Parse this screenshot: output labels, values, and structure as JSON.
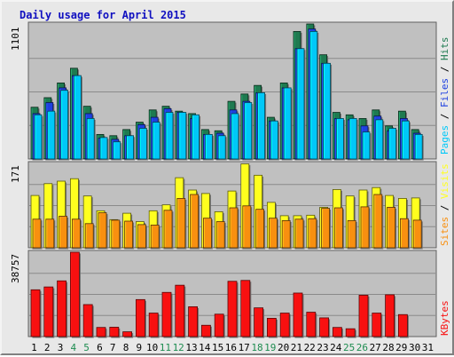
{
  "title": "Daily usage for April 2015",
  "colors": {
    "pages": "#00c8f8",
    "files": "#1e40e0",
    "hits": "#1e7a50",
    "visits": "#ffff1e",
    "sites": "#f89010",
    "kbytes": "#f81010",
    "weekend_label": "#1e8c50",
    "weekday_label": "#000000",
    "panel_bg": "#c0c0c0",
    "frame_bg": "#e8e8e8"
  },
  "chart_data": [
    {
      "type": "bar",
      "name": "hits-files-pages",
      "max_label": "1101",
      "ylim": [
        0,
        1101
      ],
      "legend": [
        "Pages",
        "Files",
        "Hits"
      ],
      "legend_separator": "/",
      "categories": [
        "1",
        "2",
        "3",
        "4",
        "5",
        "6",
        "7",
        "8",
        "9",
        "10",
        "11",
        "12",
        "13",
        "14",
        "15",
        "16",
        "17",
        "18",
        "19",
        "20",
        "21",
        "22",
        "23",
        "24",
        "25",
        "26",
        "27",
        "28",
        "29",
        "30",
        "31"
      ],
      "weekend_days": [
        "4",
        "5",
        "11",
        "12",
        "18",
        "19",
        "25",
        "26"
      ],
      "series": [
        {
          "name": "Hits",
          "values": [
            422,
            500,
            620,
            740,
            430,
            200,
            190,
            240,
            300,
            400,
            430,
            390,
            370,
            240,
            230,
            470,
            530,
            600,
            340,
            620,
            1040,
            1101,
            850,
            380,
            360,
            330,
            400,
            270,
            390,
            240,
            0
          ]
        },
        {
          "name": "Files",
          "values": [
            370,
            460,
            580,
            680,
            370,
            170,
            160,
            190,
            280,
            340,
            410,
            380,
            330,
            200,
            210,
            400,
            470,
            540,
            310,
            580,
            900,
            1060,
            780,
            330,
            320,
            270,
            350,
            230,
            330,
            210,
            0
          ]
        },
        {
          "name": "Pages",
          "values": [
            360,
            390,
            560,
            680,
            330,
            175,
            140,
            190,
            250,
            300,
            380,
            380,
            360,
            200,
            190,
            370,
            460,
            540,
            310,
            580,
            900,
            1040,
            780,
            330,
            330,
            220,
            320,
            250,
            310,
            200,
            0
          ]
        }
      ]
    },
    {
      "type": "bar",
      "name": "visits-sites",
      "max_label": "171",
      "ylim": [
        0,
        171
      ],
      "legend": [
        "Sites",
        "Visits"
      ],
      "legend_separator": "/",
      "categories": [
        "1",
        "2",
        "3",
        "4",
        "5",
        "6",
        "7",
        "8",
        "9",
        "10",
        "11",
        "12",
        "13",
        "14",
        "15",
        "16",
        "17",
        "18",
        "19",
        "20",
        "21",
        "22",
        "23",
        "24",
        "25",
        "26",
        "27",
        "28",
        "29",
        "30",
        "31"
      ],
      "weekend_days": [
        "4",
        "5",
        "11",
        "12",
        "18",
        "19",
        "25",
        "26"
      ],
      "series": [
        {
          "name": "Visits",
          "values": [
            106,
            130,
            135,
            140,
            105,
            75,
            57,
            70,
            53,
            75,
            87,
            142,
            117,
            110,
            73,
            115,
            170,
            147,
            92,
            65,
            65,
            66,
            82,
            118,
            105,
            117,
            122,
            106,
            100,
            101,
            0
          ]
        },
        {
          "name": "Sites",
          "values": [
            58,
            58,
            64,
            58,
            49,
            71,
            56,
            54,
            47,
            46,
            76,
            100,
            108,
            60,
            53,
            81,
            85,
            78,
            60,
            55,
            58,
            59,
            80,
            81,
            55,
            83,
            108,
            82,
            59,
            56,
            0
          ]
        }
      ]
    },
    {
      "type": "bar",
      "name": "kbytes",
      "max_label": "38757",
      "ylim": [
        0,
        38757
      ],
      "legend": [
        "KBytes"
      ],
      "categories": [
        "1",
        "2",
        "3",
        "4",
        "5",
        "6",
        "7",
        "8",
        "9",
        "10",
        "11",
        "12",
        "13",
        "14",
        "15",
        "16",
        "17",
        "18",
        "19",
        "20",
        "21",
        "22",
        "23",
        "24",
        "25",
        "26",
        "27",
        "28",
        "29",
        "30",
        "31"
      ],
      "weekend_days": [
        "4",
        "5",
        "11",
        "12",
        "18",
        "19",
        "25",
        "26"
      ],
      "series": [
        {
          "name": "KBytes",
          "values": [
            21500,
            22800,
            25600,
            38757,
            14700,
            4200,
            4300,
            2200,
            17000,
            10800,
            20300,
            23600,
            13700,
            5200,
            10300,
            25400,
            25800,
            13200,
            8400,
            10800,
            20000,
            11200,
            8600,
            4200,
            3600,
            19000,
            10800,
            19200,
            10100,
            0,
            0
          ]
        }
      ]
    }
  ]
}
